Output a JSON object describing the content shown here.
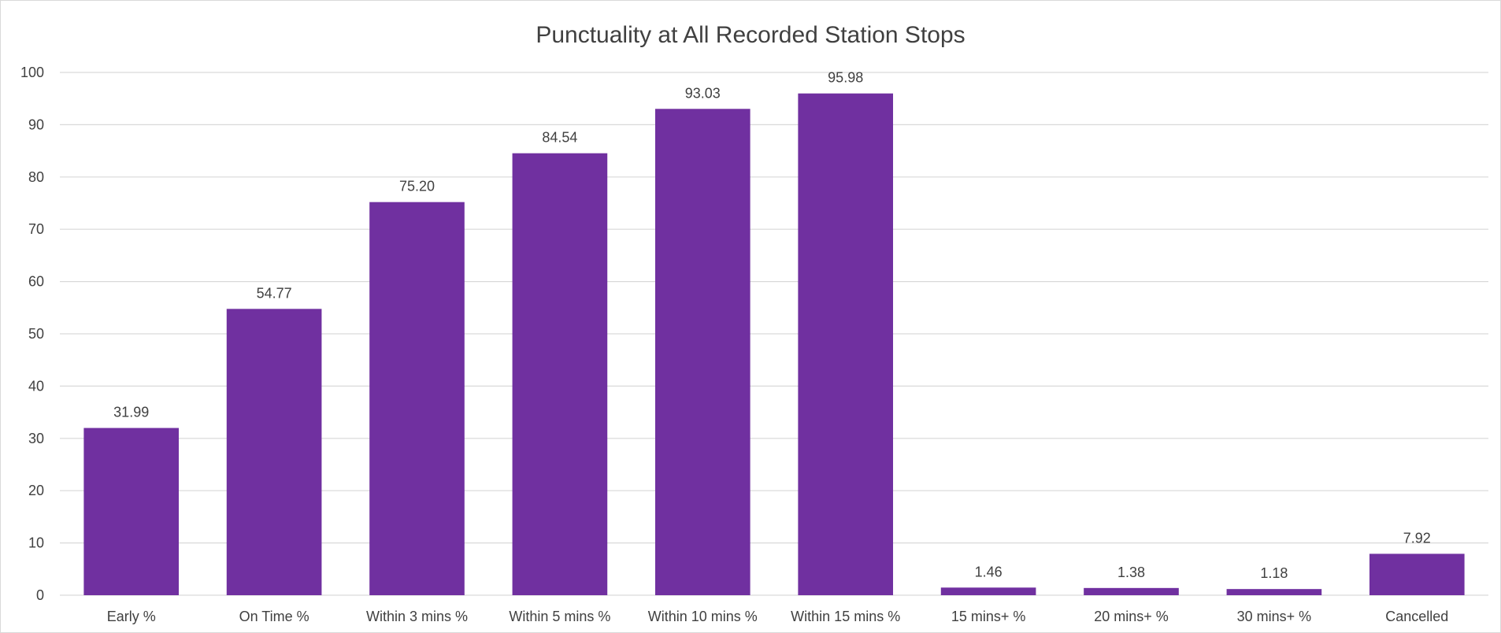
{
  "chart_data": {
    "type": "bar",
    "title": "Punctuality at All Recorded Station Stops",
    "categories": [
      "Early %",
      "On Time %",
      "Within 3 mins %",
      "Within 5 mins %",
      "Within 10 mins %",
      "Within 15 mins %",
      "15 mins+ %",
      "20 mins+ %",
      "30 mins+ %",
      "Cancelled"
    ],
    "values": [
      31.99,
      54.77,
      75.2,
      84.54,
      93.03,
      95.98,
      1.46,
      1.38,
      1.18,
      7.92
    ],
    "data_labels": [
      "31.99",
      "54.77",
      "75.20",
      "84.54",
      "93.03",
      "95.98",
      "1.46",
      "1.38",
      "1.18",
      "7.92"
    ],
    "xlabel": "",
    "ylabel": "",
    "ylim": [
      0,
      100
    ],
    "yticks": [
      0,
      10,
      20,
      30,
      40,
      50,
      60,
      70,
      80,
      90,
      100
    ],
    "grid": true,
    "legend": "none",
    "bar_color": "#7030A0",
    "grid_color": "#d9d9d9",
    "text_color": "#404040"
  }
}
